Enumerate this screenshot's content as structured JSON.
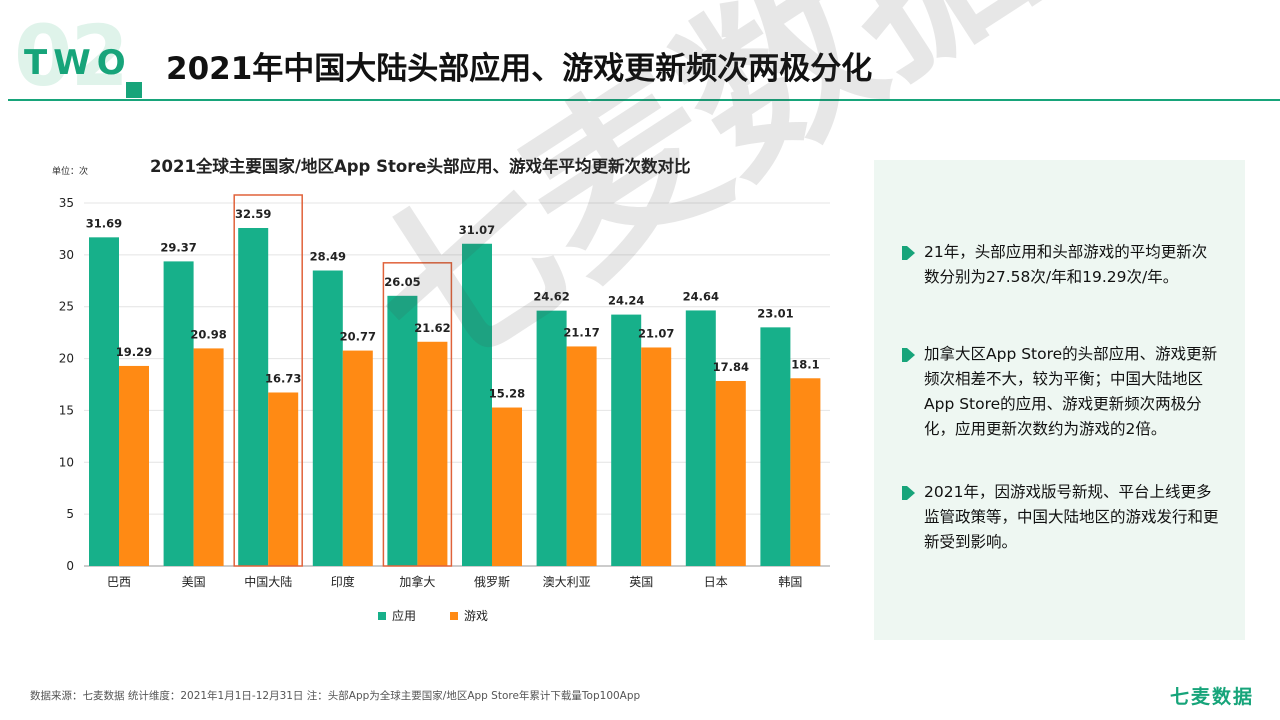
{
  "header": {
    "section_number": "02",
    "section_word": "TWO",
    "title": "2021年中国大陆头部应用、游戏更新频次两极分化"
  },
  "colors": {
    "accent": "#17a47a",
    "app": "#17b08a",
    "game": "#ff8a14",
    "highlight_box": "#e0623a",
    "sidebar_bg": "#eef7f2"
  },
  "chart_data": {
    "type": "bar",
    "title": "2021全球主要国家/地区App Store头部应用、游戏年平均更新次数对比",
    "unit_label": "单位：次",
    "categories": [
      "巴西",
      "美国",
      "中国大陆",
      "印度",
      "加拿大",
      "俄罗斯",
      "澳大利亚",
      "英国",
      "日本",
      "韩国"
    ],
    "series": [
      {
        "name": "应用",
        "values": [
          31.69,
          29.37,
          32.59,
          28.49,
          26.05,
          31.07,
          24.62,
          24.24,
          24.64,
          23.01
        ]
      },
      {
        "name": "游戏",
        "values": [
          19.29,
          20.98,
          16.73,
          20.77,
          21.62,
          15.28,
          21.17,
          21.07,
          17.84,
          18.1
        ]
      }
    ],
    "value_labels": [
      [
        "31.69",
        "29.37",
        "32.59",
        "28.49",
        "26.05",
        "31.07",
        "24.62",
        "24.24",
        "24.64",
        "23.01"
      ],
      [
        "19.29",
        "20.98",
        "16.73",
        "20.77",
        "21.62",
        "15.28",
        "21.17",
        "21.07",
        "17.84",
        "18.1"
      ]
    ],
    "ylim": [
      0,
      35
    ],
    "yticks": [
      0,
      5,
      10,
      15,
      20,
      25,
      30,
      35
    ],
    "grid": true,
    "legend": "bottom-center",
    "highlighted_categories": [
      "中国大陆",
      "加拿大"
    ]
  },
  "notes": [
    "21年，头部应用和头部游戏的平均更新次数分别为27.58次/年和19.29次/年。",
    "加拿大区App Store的头部应用、游戏更新频次相差不大，较为平衡；中国大陆地区App Store的应用、游戏更新频次两极分化，应用更新次数约为游戏的2倍。",
    "2021年，因游戏版号新规、平台上线更多监管政策等，中国大陆地区的游戏发行和更新受到影响。"
  ],
  "footer": {
    "source": "数据来源：七麦数据  统计维度：2021年1月1日-12月31日  注：头部App为全球主要国家/地区App Store年累计下载量Top100App",
    "brand": "七麦数据"
  },
  "watermark": "七麦数据"
}
